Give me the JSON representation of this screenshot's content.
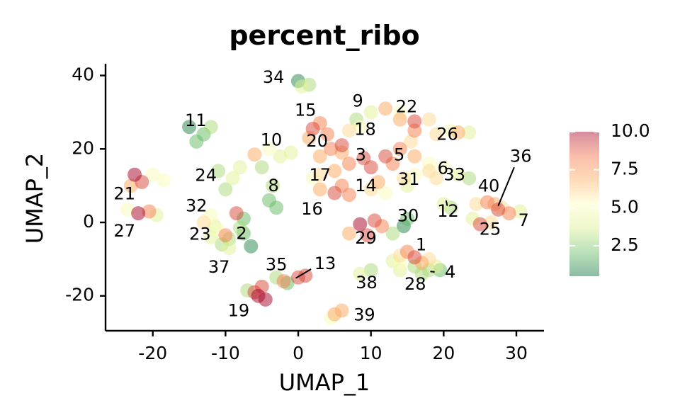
{
  "chart_data": {
    "type": "scatter",
    "title": "percent_ribo",
    "xlabel": "UMAP_1",
    "ylabel": "UMAP_2",
    "xlim": [
      -26.5,
      33.8
    ],
    "ylim": [
      -29.5,
      43.2
    ],
    "xticks": [
      -20,
      -10,
      0,
      10,
      20,
      30
    ],
    "yticks": [
      -20,
      0,
      20,
      40
    ],
    "xtick_labels": [
      "-20",
      "-10",
      "0",
      "10",
      "20",
      "30"
    ],
    "ytick_labels": [
      "-20",
      "0",
      "20",
      "40"
    ],
    "grid": false,
    "point_opacity": 0.5,
    "colorscale": {
      "name": "RdYlGn (reversed)",
      "min": 0.5,
      "max": 10.0,
      "stops": [
        "#006837",
        "#66bd63",
        "#d9ef8b",
        "#ffffbf",
        "#fdae61",
        "#f46d43",
        "#a50026"
      ],
      "ticks": [
        2.5,
        5.0,
        7.5,
        10.0
      ],
      "tick_labels": [
        "2.5",
        "5.0",
        "7.5",
        "10.0"
      ],
      "legend_placement": "right"
    },
    "clusters": [
      {
        "label": "1",
        "points": [
          [
            14,
            -9.0,
            6
          ],
          [
            16,
            -9.5,
            9
          ],
          [
            15,
            -8,
            8
          ],
          [
            17,
            -11,
            7
          ],
          [
            14,
            -11,
            5
          ],
          [
            18,
            -10,
            6
          ],
          [
            19,
            -12,
            4
          ],
          [
            13,
            -10.5,
            4
          ]
        ]
      },
      {
        "label": "2",
        "points": [
          [
            -7.5,
            1.0,
            2
          ],
          [
            -8.0,
            -1.5,
            3
          ],
          [
            -6.5,
            -6.5,
            1
          ],
          [
            -7.5,
            -3,
            2
          ],
          [
            -8.5,
            2.5,
            9
          ],
          [
            -9.5,
            -4.5,
            3
          ]
        ]
      },
      {
        "label": "3",
        "points": [
          [
            9,
            17.5,
            9
          ],
          [
            12,
            18,
            9
          ],
          [
            7,
            16,
            8
          ],
          [
            10,
            15,
            9
          ],
          [
            6,
            19,
            7
          ],
          [
            13,
            16,
            8
          ]
        ]
      },
      {
        "label": "4",
        "points": [
          [
            18,
            -13,
            3
          ],
          [
            19.5,
            -13,
            2
          ],
          [
            17,
            -14,
            3
          ]
        ]
      },
      {
        "label": "5",
        "points": [
          [
            14,
            20,
            8
          ],
          [
            16,
            18,
            7
          ],
          [
            18,
            16,
            5
          ],
          [
            15.5,
            22,
            6
          ]
        ]
      },
      {
        "label": "6",
        "points": [
          [
            18,
            14,
            6
          ],
          [
            20,
            15,
            5
          ],
          [
            19,
            12,
            6
          ]
        ]
      },
      {
        "label": "7",
        "points": [
          [
            29,
            2.5,
            8
          ],
          [
            30.5,
            3,
            4
          ],
          [
            27.5,
            3.5,
            9
          ]
        ]
      },
      {
        "label": "8",
        "points": [
          [
            -3.5,
            10,
            3
          ],
          [
            -4,
            6,
            2
          ],
          [
            -3,
            4,
            2
          ]
        ]
      },
      {
        "label": "9",
        "points": [
          [
            10,
            30,
            4
          ],
          [
            12,
            31,
            7
          ],
          [
            14,
            30,
            5
          ],
          [
            8,
            28,
            3
          ]
        ]
      },
      {
        "label": "10",
        "points": [
          [
            -6,
            18.5,
            7
          ],
          [
            -4,
            20,
            5
          ],
          [
            -2.5,
            18,
            4
          ],
          [
            -5,
            15,
            3
          ],
          [
            -1,
            19,
            4
          ]
        ]
      },
      {
        "label": "11",
        "points": [
          [
            -15,
            26,
            1
          ],
          [
            -13,
            24,
            2
          ],
          [
            -14,
            22,
            2
          ],
          [
            -12,
            26,
            3
          ]
        ]
      },
      {
        "label": "12",
        "points": [
          [
            20,
            5,
            4
          ],
          [
            21,
            4,
            3
          ]
        ]
      },
      {
        "label": "13",
        "points": [
          [
            0,
            -15,
            9
          ],
          [
            -2,
            -16,
            8
          ],
          [
            1,
            -14.5,
            9
          ]
        ]
      },
      {
        "label": "14",
        "points": [
          [
            10,
            9,
            6
          ],
          [
            12,
            8,
            5
          ],
          [
            11,
            11,
            7
          ]
        ]
      },
      {
        "label": "15",
        "points": [
          [
            2,
            25.5,
            9
          ],
          [
            3,
            27,
            8
          ],
          [
            1.5,
            23,
            7
          ],
          [
            4,
            24,
            8
          ]
        ]
      },
      {
        "label": "16",
        "points": [
          [
            5,
            8,
            9
          ],
          [
            7,
            7.5,
            8
          ],
          [
            3,
            9,
            7
          ],
          [
            6,
            10,
            8
          ]
        ]
      },
      {
        "label": "17",
        "points": [
          [
            3,
            13,
            6
          ],
          [
            5,
            14,
            7
          ],
          [
            2,
            12,
            5
          ]
        ]
      },
      {
        "label": "18",
        "points": [
          [
            7,
            25,
            6
          ],
          [
            8.5,
            26,
            5
          ]
        ]
      },
      {
        "label": "19",
        "points": [
          [
            -5.5,
            -20,
            10
          ],
          [
            -5,
            -17.5,
            9
          ],
          [
            -4.5,
            -21,
            10
          ],
          [
            -6,
            -19,
            9
          ],
          [
            -7,
            -18.5,
            3
          ]
        ]
      },
      {
        "label": "20",
        "points": [
          [
            4.5,
            20,
            8
          ],
          [
            6,
            21,
            9
          ],
          [
            3,
            18,
            7
          ]
        ]
      },
      {
        "label": "21",
        "points": [
          [
            -22.5,
            13,
            10
          ],
          [
            -21.5,
            11,
            9
          ],
          [
            -23,
            10,
            7
          ],
          [
            -20,
            13,
            5
          ],
          [
            -18.5,
            11.5,
            5
          ]
        ]
      },
      {
        "label": "22",
        "points": [
          [
            16,
            27.5,
            9
          ],
          [
            14,
            28,
            7
          ],
          [
            18,
            28,
            6
          ],
          [
            16,
            25,
            8
          ]
        ]
      },
      {
        "label": "23",
        "points": [
          [
            -10,
            -3.5,
            8
          ],
          [
            -11,
            -2,
            5
          ],
          [
            -12,
            -4,
            4
          ]
        ]
      },
      {
        "label": "24",
        "points": [
          [
            -9,
            12,
            4
          ],
          [
            -10,
            9,
            3
          ],
          [
            -8,
            15,
            4
          ],
          [
            -11,
            14,
            3
          ]
        ]
      },
      {
        "label": "25",
        "points": [
          [
            25,
            -0.5,
            9
          ],
          [
            26.5,
            0,
            6
          ],
          [
            24,
            1,
            4
          ]
        ]
      },
      {
        "label": "26",
        "points": [
          [
            19,
            24,
            6
          ],
          [
            21,
            25,
            5
          ],
          [
            22,
            24.5,
            7
          ],
          [
            23.5,
            24.5,
            4
          ]
        ]
      },
      {
        "label": "27",
        "points": [
          [
            -22,
            2.5,
            10
          ],
          [
            -20.5,
            3,
            8
          ],
          [
            -23.5,
            3.5,
            5
          ],
          [
            -19.5,
            2,
            4
          ]
        ]
      },
      {
        "label": "28",
        "points": [
          [
            16,
            -12,
            3
          ],
          [
            14,
            -13,
            4
          ]
        ]
      },
      {
        "label": "29",
        "points": [
          [
            8.5,
            -0.5,
            10
          ],
          [
            10.5,
            0.5,
            9
          ],
          [
            7,
            -3,
            7
          ],
          [
            9.5,
            -3.5,
            9
          ],
          [
            11.5,
            -1,
            8
          ]
        ]
      },
      {
        "label": "30",
        "points": [
          [
            14.5,
            -1,
            1
          ],
          [
            15,
            1,
            2
          ],
          [
            13,
            -3,
            3
          ]
        ]
      },
      {
        "label": "31",
        "points": [
          [
            14.5,
            12,
            6
          ],
          [
            16,
            13,
            5
          ],
          [
            15,
            10,
            4
          ]
        ]
      },
      {
        "label": "32",
        "points": [
          [
            -12,
            2,
            5
          ],
          [
            -13,
            0,
            6
          ],
          [
            -11.5,
            -1,
            4
          ]
        ]
      },
      {
        "label": "33",
        "points": [
          [
            22,
            13,
            4
          ],
          [
            23.5,
            12,
            3
          ]
        ]
      },
      {
        "label": "34",
        "points": [
          [
            0,
            38.5,
            1
          ],
          [
            1.5,
            37.5,
            3
          ],
          [
            0.5,
            37,
            4
          ]
        ]
      },
      {
        "label": "35",
        "points": [
          [
            -3,
            -15,
            3
          ],
          [
            -1.5,
            -16.5,
            2
          ]
        ]
      },
      {
        "label": "36",
        "points": [
          [
            27,
            5,
            7
          ],
          [
            28,
            4,
            6
          ]
        ]
      },
      {
        "label": "37",
        "points": [
          [
            -9.5,
            -7,
            4
          ],
          [
            -10.5,
            -6,
            3
          ]
        ]
      },
      {
        "label": "38",
        "points": [
          [
            10,
            -13,
            3
          ],
          [
            8.5,
            -14,
            4
          ]
        ]
      },
      {
        "label": "39",
        "points": [
          [
            5,
            -25,
            7
          ],
          [
            6,
            -24,
            7
          ],
          [
            4.5,
            -26,
            5
          ]
        ]
      },
      {
        "label": "40",
        "points": [
          [
            26,
            5.5,
            8
          ],
          [
            24.5,
            5,
            6
          ]
        ]
      }
    ],
    "cluster_labels": [
      {
        "text": "1",
        "x": 16.9,
        "y": -6.3
      },
      {
        "text": "2",
        "x": -7.8,
        "y": -3.2
      },
      {
        "text": "3",
        "x": 8.6,
        "y": 18.2
      },
      {
        "text": "4",
        "x": 20.9,
        "y": -13.7
      },
      {
        "text": "5",
        "x": 13.9,
        "y": 18.2
      },
      {
        "text": "6",
        "x": 19.9,
        "y": 14.6
      },
      {
        "text": "7",
        "x": 31.0,
        "y": 0.4
      },
      {
        "text": "8",
        "x": -3.4,
        "y": 9.8
      },
      {
        "text": "9",
        "x": 8.2,
        "y": 32.9
      },
      {
        "text": "10",
        "x": -3.7,
        "y": 22.3
      },
      {
        "text": "11",
        "x": -14.1,
        "y": 27.6
      },
      {
        "text": "12",
        "x": 20.6,
        "y": 2.9
      },
      {
        "text": "13",
        "x": 3.7,
        "y": -11.4
      },
      {
        "text": "14",
        "x": 9.3,
        "y": 9.8
      },
      {
        "text": "15",
        "x": 1.0,
        "y": 30.4
      },
      {
        "text": "16",
        "x": 1.9,
        "y": 3.5
      },
      {
        "text": "17",
        "x": 3.0,
        "y": 12.7
      },
      {
        "text": "18",
        "x": 9.2,
        "y": 25.2
      },
      {
        "text": "19",
        "x": -8.2,
        "y": -24.2
      },
      {
        "text": "20",
        "x": 2.6,
        "y": 22.0
      },
      {
        "text": "21",
        "x": -23.9,
        "y": 7.6
      },
      {
        "text": "22",
        "x": 14.9,
        "y": 31.3
      },
      {
        "text": "23",
        "x": -13.5,
        "y": -3.4
      },
      {
        "text": "24",
        "x": -12.7,
        "y": 12.6
      },
      {
        "text": "25",
        "x": 26.4,
        "y": -2.0
      },
      {
        "text": "26",
        "x": 20.5,
        "y": 23.8
      },
      {
        "text": "27",
        "x": -23.9,
        "y": -2.5
      },
      {
        "text": "28",
        "x": 16.1,
        "y": -17.0
      },
      {
        "text": "29",
        "x": 9.3,
        "y": -4.4
      },
      {
        "text": "30",
        "x": 15.1,
        "y": 1.6
      },
      {
        "text": "31",
        "x": 15.2,
        "y": 11.6
      },
      {
        "text": "32",
        "x": -14.0,
        "y": 4.3
      },
      {
        "text": "33",
        "x": 21.5,
        "y": 12.8
      },
      {
        "text": "34",
        "x": -3.4,
        "y": 39.3
      },
      {
        "text": "35",
        "x": -3.0,
        "y": -11.7
      },
      {
        "text": "36",
        "x": 30.6,
        "y": 17.8
      },
      {
        "text": "37",
        "x": -10.9,
        "y": -12.3
      },
      {
        "text": "38",
        "x": 9.4,
        "y": -16.6
      },
      {
        "text": "39",
        "x": 9.1,
        "y": -25.4
      },
      {
        "text": "40",
        "x": 26.2,
        "y": 9.7
      }
    ]
  }
}
